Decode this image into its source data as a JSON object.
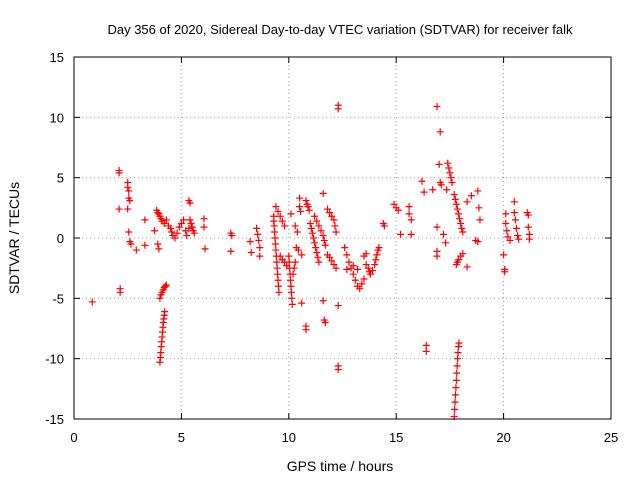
{
  "chart_data": {
    "type": "scatter",
    "title": "Day 356 of 2020, Sidereal Day-to-day VTEC variation (SDTVAR) for receiver falk",
    "xlabel": "GPS time / hours",
    "ylabel": "SDTVAR / TECUs",
    "xlim": [
      0,
      25
    ],
    "ylim": [
      -15,
      15
    ],
    "xticks": [
      0,
      5,
      10,
      15,
      20,
      25
    ],
    "yticks": [
      -15,
      -10,
      -5,
      0,
      5,
      10,
      15
    ],
    "grid": true,
    "marker": "+",
    "color": "#ff0000",
    "series": [
      {
        "name": "SDTVAR",
        "points": [
          [
            0.85,
            -5.3
          ],
          [
            2.1,
            5.6
          ],
          [
            2.1,
            5.4
          ],
          [
            2.1,
            2.4
          ],
          [
            2.15,
            -4.2
          ],
          [
            2.15,
            -4.5
          ],
          [
            2.5,
            4.6
          ],
          [
            2.5,
            4.2
          ],
          [
            2.55,
            3.9
          ],
          [
            2.55,
            3.3
          ],
          [
            2.6,
            3.1
          ],
          [
            2.5,
            2.4
          ],
          [
            2.55,
            0.5
          ],
          [
            2.6,
            -0.3
          ],
          [
            2.65,
            -0.5
          ],
          [
            2.9,
            -1.0
          ],
          [
            3.3,
            1.5
          ],
          [
            3.3,
            -0.6
          ],
          [
            3.75,
            0.6
          ],
          [
            3.9,
            -0.5
          ],
          [
            3.95,
            -0.9
          ],
          [
            3.85,
            2.3
          ],
          [
            3.9,
            2.1
          ],
          [
            3.95,
            2.0
          ],
          [
            4.0,
            1.8
          ],
          [
            4.05,
            1.6
          ],
          [
            4.1,
            1.4
          ],
          [
            4.2,
            1.2
          ],
          [
            4.3,
            1.5
          ],
          [
            4.4,
            1.0
          ],
          [
            4.0,
            -5.0
          ],
          [
            4.05,
            -4.7
          ],
          [
            4.1,
            -4.5
          ],
          [
            4.15,
            -4.3
          ],
          [
            4.2,
            -4.1
          ],
          [
            4.25,
            -4.0
          ],
          [
            4.3,
            -3.9
          ],
          [
            4.0,
            -10.3
          ],
          [
            4.02,
            -9.9
          ],
          [
            4.04,
            -9.5
          ],
          [
            4.06,
            -9.0
          ],
          [
            4.08,
            -8.6
          ],
          [
            4.1,
            -8.2
          ],
          [
            4.12,
            -7.8
          ],
          [
            4.14,
            -7.4
          ],
          [
            4.16,
            -7.0
          ],
          [
            4.18,
            -6.7
          ],
          [
            4.2,
            -6.4
          ],
          [
            4.22,
            -6.1
          ],
          [
            4.5,
            0.8
          ],
          [
            4.55,
            0.5
          ],
          [
            4.6,
            0.2
          ],
          [
            4.7,
            0.0
          ],
          [
            4.8,
            0.4
          ],
          [
            4.9,
            0.9
          ],
          [
            5.0,
            1.2
          ],
          [
            5.1,
            1.5
          ],
          [
            5.2,
            0.6
          ],
          [
            5.25,
            0.2
          ],
          [
            5.35,
            3.1
          ],
          [
            5.4,
            2.9
          ],
          [
            5.4,
            1.5
          ],
          [
            5.45,
            1.2
          ],
          [
            5.5,
            0.9
          ],
          [
            5.55,
            0.6
          ],
          [
            5.6,
            0.4
          ],
          [
            5.35,
            0.8
          ],
          [
            6.05,
            1.6
          ],
          [
            6.05,
            0.9
          ],
          [
            6.1,
            -0.9
          ],
          [
            7.3,
            0.4
          ],
          [
            7.35,
            0.2
          ],
          [
            7.3,
            -1.1
          ],
          [
            8.2,
            -0.3
          ],
          [
            8.25,
            -1.2
          ],
          [
            8.5,
            0.8
          ],
          [
            8.55,
            0.3
          ],
          [
            8.6,
            -0.2
          ],
          [
            8.65,
            -0.8
          ],
          [
            8.65,
            -1.5
          ],
          [
            9.3,
            1.8
          ],
          [
            9.3,
            1.4
          ],
          [
            9.32,
            1.0
          ],
          [
            9.34,
            0.5
          ],
          [
            9.36,
            0.0
          ],
          [
            9.38,
            -0.5
          ],
          [
            9.4,
            -1.0
          ],
          [
            9.42,
            -1.5
          ],
          [
            9.44,
            -2.0
          ],
          [
            9.46,
            -2.5
          ],
          [
            9.48,
            -3.0
          ],
          [
            9.5,
            -3.5
          ],
          [
            9.52,
            -4.0
          ],
          [
            9.54,
            -4.5
          ],
          [
            9.4,
            2.6
          ],
          [
            9.5,
            2.2
          ],
          [
            9.6,
            1.8
          ],
          [
            9.7,
            1.4
          ],
          [
            9.8,
            1.0
          ],
          [
            9.6,
            -1.5
          ],
          [
            9.7,
            -1.8
          ],
          [
            9.8,
            -2.0
          ],
          [
            9.9,
            -2.3
          ],
          [
            10.0,
            -1.5
          ],
          [
            10.02,
            -2.0
          ],
          [
            10.04,
            -2.5
          ],
          [
            10.06,
            -3.0
          ],
          [
            10.08,
            -3.5
          ],
          [
            10.1,
            -4.0
          ],
          [
            10.12,
            -4.5
          ],
          [
            10.14,
            -5.0
          ],
          [
            10.16,
            -5.5
          ],
          [
            10.2,
            -3.0
          ],
          [
            10.25,
            -2.5
          ],
          [
            10.3,
            -2.0
          ],
          [
            10.1,
            2.0
          ],
          [
            10.3,
            1.0
          ],
          [
            10.4,
            0.5
          ],
          [
            10.35,
            -0.8
          ],
          [
            10.45,
            -1.0
          ],
          [
            10.5,
            3.3
          ],
          [
            10.5,
            2.6
          ],
          [
            10.55,
            2.2
          ],
          [
            10.6,
            -1.4
          ],
          [
            10.6,
            -5.4
          ],
          [
            10.8,
            -7.3
          ],
          [
            10.8,
            -7.6
          ],
          [
            10.8,
            3.1
          ],
          [
            10.85,
            2.8
          ],
          [
            10.9,
            2.6
          ],
          [
            10.95,
            2.3
          ],
          [
            11.0,
            1.2
          ],
          [
            11.05,
            0.8
          ],
          [
            11.1,
            0.4
          ],
          [
            11.15,
            0.0
          ],
          [
            11.2,
            -0.4
          ],
          [
            11.25,
            -0.8
          ],
          [
            11.3,
            -1.2
          ],
          [
            11.35,
            -1.6
          ],
          [
            11.4,
            -2.0
          ],
          [
            11.2,
            1.8
          ],
          [
            11.3,
            1.4
          ],
          [
            11.4,
            1.0
          ],
          [
            11.5,
            0.6
          ],
          [
            11.6,
            0.2
          ],
          [
            11.65,
            -0.2
          ],
          [
            11.7,
            -0.6
          ],
          [
            11.6,
            3.7
          ],
          [
            11.6,
            -5.2
          ],
          [
            11.65,
            -6.8
          ],
          [
            11.7,
            -7.0
          ],
          [
            11.8,
            2.4
          ],
          [
            11.9,
            2.1
          ],
          [
            12.0,
            1.8
          ],
          [
            12.1,
            1.5
          ],
          [
            12.15,
            1.0
          ],
          [
            12.2,
            0.5
          ],
          [
            11.8,
            -1.4
          ],
          [
            11.9,
            -1.6
          ],
          [
            12.0,
            -1.9
          ],
          [
            12.1,
            -2.2
          ],
          [
            12.2,
            -2.5
          ],
          [
            12.3,
            11.0
          ],
          [
            12.3,
            10.7
          ],
          [
            12.3,
            -5.6
          ],
          [
            12.3,
            -10.6
          ],
          [
            12.3,
            -10.9
          ],
          [
            12.6,
            -0.8
          ],
          [
            12.7,
            -1.4
          ],
          [
            12.8,
            -2.0
          ],
          [
            12.9,
            -2.5
          ],
          [
            13.0,
            -3.0
          ],
          [
            13.1,
            -3.5
          ],
          [
            13.2,
            -4.0
          ],
          [
            13.3,
            -4.2
          ],
          [
            13.4,
            -3.8
          ],
          [
            13.5,
            -3.4
          ],
          [
            12.7,
            -2.6
          ],
          [
            13.0,
            -2.3
          ],
          [
            13.2,
            -2.6
          ],
          [
            13.5,
            -1.5
          ],
          [
            13.6,
            -1.3
          ],
          [
            13.6,
            -2.2
          ],
          [
            13.7,
            -2.5
          ],
          [
            13.75,
            -2.8
          ],
          [
            13.8,
            -3.0
          ],
          [
            13.9,
            -2.7
          ],
          [
            14.0,
            -2.2
          ],
          [
            14.05,
            -1.8
          ],
          [
            14.1,
            -1.4
          ],
          [
            14.15,
            -1.0
          ],
          [
            14.2,
            -0.8
          ],
          [
            14.4,
            1.2
          ],
          [
            14.45,
            1.0
          ],
          [
            14.9,
            2.8
          ],
          [
            15.0,
            2.5
          ],
          [
            15.1,
            2.3
          ],
          [
            15.2,
            0.3
          ],
          [
            15.6,
            2.6
          ],
          [
            15.6,
            2.0
          ],
          [
            15.7,
            1.5
          ],
          [
            15.7,
            0.3
          ],
          [
            16.2,
            4.7
          ],
          [
            16.3,
            3.8
          ],
          [
            16.4,
            -8.9
          ],
          [
            16.4,
            -9.4
          ],
          [
            16.7,
            4.0
          ],
          [
            16.9,
            10.9
          ],
          [
            16.9,
            0.9
          ],
          [
            16.9,
            -1.1
          ],
          [
            16.9,
            -1.5
          ],
          [
            17.05,
            8.8
          ],
          [
            17.0,
            6.1
          ],
          [
            17.05,
            4.6
          ],
          [
            17.1,
            4.4
          ],
          [
            17.2,
            0.3
          ],
          [
            17.3,
            -0.4
          ],
          [
            17.4,
            6.2
          ],
          [
            17.45,
            5.8
          ],
          [
            17.5,
            5.4
          ],
          [
            17.55,
            5.0
          ],
          [
            17.6,
            4.6
          ],
          [
            17.35,
            4.0
          ],
          [
            17.7,
            3.6
          ],
          [
            17.75,
            3.2
          ],
          [
            17.8,
            2.8
          ],
          [
            17.85,
            2.4
          ],
          [
            17.9,
            2.0
          ],
          [
            17.95,
            1.6
          ],
          [
            18.0,
            1.2
          ],
          [
            18.05,
            0.8
          ],
          [
            18.1,
            0.5
          ],
          [
            17.7,
            -14.8
          ],
          [
            17.72,
            -14.2
          ],
          [
            17.74,
            -13.6
          ],
          [
            17.76,
            -13.0
          ],
          [
            17.78,
            -12.4
          ],
          [
            17.8,
            -11.8
          ],
          [
            17.82,
            -11.2
          ],
          [
            17.84,
            -10.6
          ],
          [
            17.86,
            -10.0
          ],
          [
            17.88,
            -9.5
          ],
          [
            17.9,
            -9.0
          ],
          [
            17.92,
            -8.7
          ],
          [
            17.8,
            -2.2
          ],
          [
            17.85,
            -2.0
          ],
          [
            17.9,
            -1.8
          ],
          [
            18.0,
            -1.5
          ],
          [
            18.1,
            -1.3
          ],
          [
            18.3,
            3.0
          ],
          [
            18.3,
            -2.4
          ],
          [
            18.5,
            3.5
          ],
          [
            18.7,
            -0.2
          ],
          [
            18.8,
            3.9
          ],
          [
            18.85,
            2.5
          ],
          [
            18.9,
            1.5
          ],
          [
            18.8,
            -0.3
          ],
          [
            20.0,
            -1.4
          ],
          [
            20.05,
            -2.6
          ],
          [
            20.05,
            -2.8
          ],
          [
            20.1,
            2.0
          ],
          [
            20.1,
            1.2
          ],
          [
            20.15,
            0.6
          ],
          [
            20.2,
            0.1
          ],
          [
            20.3,
            -0.2
          ],
          [
            20.5,
            3.0
          ],
          [
            20.5,
            2.1
          ],
          [
            20.55,
            1.5
          ],
          [
            20.6,
            0.8
          ],
          [
            20.65,
            0.2
          ],
          [
            20.7,
            -0.1
          ],
          [
            21.1,
            2.1
          ],
          [
            21.15,
            1.9
          ],
          [
            21.15,
            0.9
          ],
          [
            21.2,
            0.3
          ],
          [
            21.2,
            -0.1
          ]
        ]
      }
    ]
  }
}
